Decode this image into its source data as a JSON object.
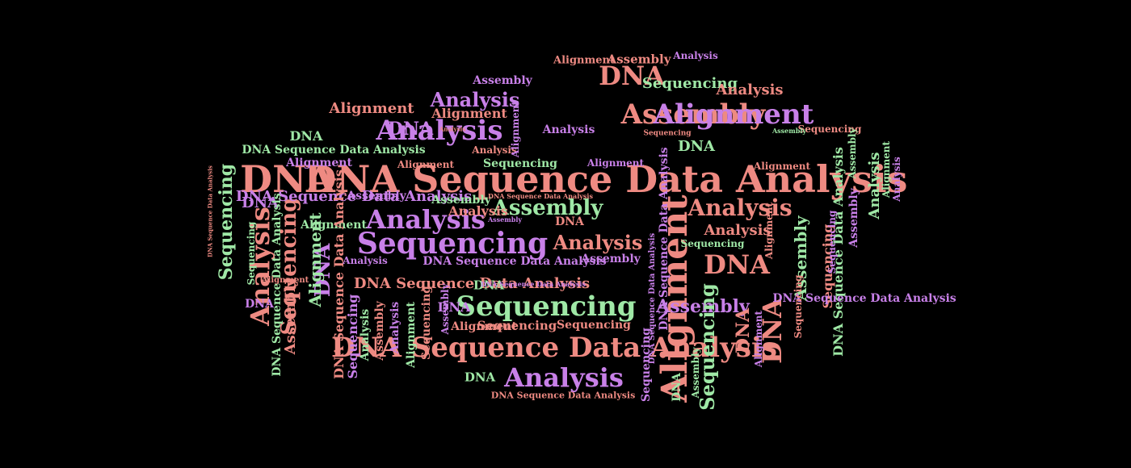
{
  "background": "#000000",
  "palette": {
    "salmon": "#ee8a82",
    "violet": "#c880e8",
    "green": "#9fe8a6"
  },
  "words": [
    "DNA Sequence Data Analysis",
    "DNA",
    "Sequencing",
    "Analysis",
    "Assembly",
    "Alignment",
    "DNA Sequence Data Analysis",
    "Sequencing",
    "DNA",
    "Analysis",
    "Analysis",
    "DNA",
    "Analysis",
    "Alignment",
    "DNA",
    "Sequencing",
    "DNA",
    "Assembly",
    "Analysis",
    "Analysis",
    "Analysis",
    "DNA",
    "Assembly",
    "Sequencing",
    "DNA",
    "DNA",
    "Analysis",
    "Assembly",
    "Sequencing",
    "DNA Sequence Data Analysis",
    "Analysis",
    "Assembly",
    "DNA Sequence Data Analysis",
    "Sequencing",
    "Analysis",
    "DNA Sequence Data Analysis",
    "Alignment",
    "Sequencing",
    "Sequencing",
    "DNA",
    "DNA",
    "Alignment",
    "Alignment",
    "Assembly",
    "Alignment",
    "Assembly",
    "Analysis",
    "Alignment",
    "DNA Sequence Data Analysis",
    "DNA",
    "Sequencing",
    "Alignment",
    "DNA Sequence Data Analysis",
    "Assembly",
    "Sequencing",
    "DNA",
    "DNA Sequence Data Analysis",
    "Alignment",
    "Sequencing",
    "Analysis",
    "Assembly",
    "Analysis",
    "Alignment",
    "Sequencing",
    "Assembly",
    "DNA",
    "DNA",
    "Analysis",
    "DNA Sequence Data Analysis",
    "DNA Sequence Data Analysis",
    "Alignment",
    "Assembly",
    "Alignment",
    "Analysis",
    "Assembly",
    "DNA Sequence Data Analysis",
    "Sequencing",
    "DNA",
    "Assembly",
    "Analysis",
    "Alignment",
    "Analysis",
    "Assembly",
    "DNA Sequence Data Analysis",
    "Alignment",
    "Alignment",
    "DNA Sequence Data Analysis",
    "Sequencing",
    "Sequencing",
    "Assembly",
    "Analysis",
    "Alignment",
    "Sequencing",
    "Alignment",
    "Sequencing",
    "DNA",
    "Assembly",
    "Alignment",
    "Sequencing",
    "Sequencing",
    "DNA Sequence Data Analysis",
    "Analysis",
    "Assembly",
    "DNA Sequence Data Analysis",
    "DNA Sequence Data Analysis",
    "DNA Sequence Data Analysis"
  ]
}
